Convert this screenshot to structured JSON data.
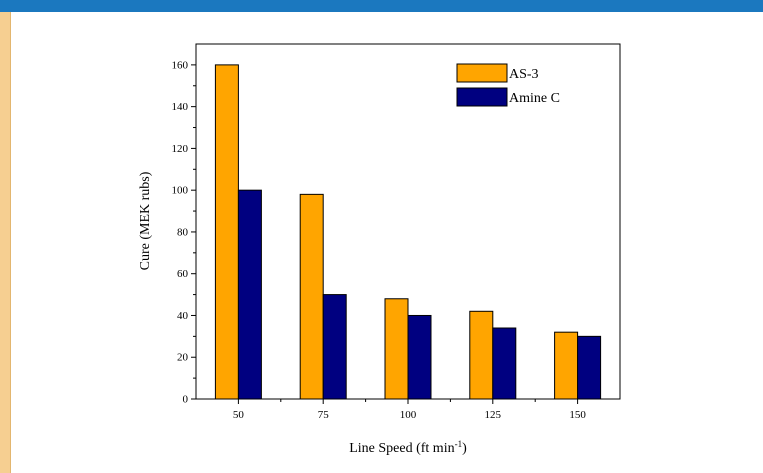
{
  "chart_data": {
    "type": "bar",
    "categories": [
      "50",
      "75",
      "100",
      "125",
      "150"
    ],
    "series": [
      {
        "name": "AS-3",
        "color": "#FFA500",
        "values": [
          160,
          98,
          48,
          42,
          32
        ]
      },
      {
        "name": "Amine C",
        "color": "#000080",
        "values": [
          100,
          50,
          40,
          34,
          30
        ]
      }
    ],
    "title": "",
    "xlabel": "Line Speed (ft min",
    "xlabel_sup": "-1",
    "xlabel_end": ")",
    "ylabel": "Cure (MEK rubs)",
    "ylim": [
      0,
      170
    ],
    "yticks": [
      "0",
      "20",
      "40",
      "60",
      "80",
      "100",
      "120",
      "140",
      "160"
    ],
    "grid": false,
    "legend_position": "top-right"
  }
}
